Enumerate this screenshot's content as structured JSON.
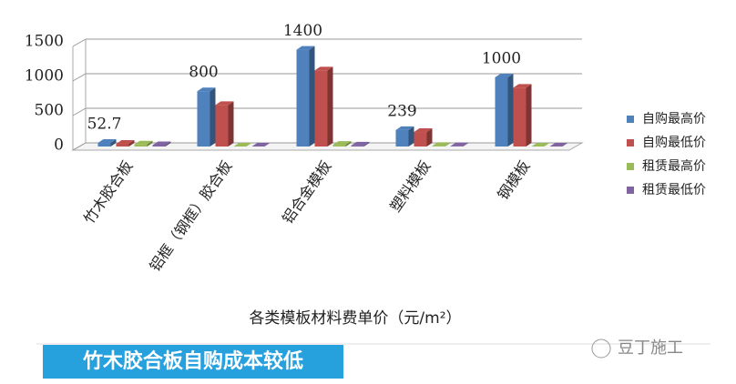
{
  "chart_data": {
    "type": "bar3d",
    "categories": [
      "竹木胶合板",
      "铝框（钢框）胶合板",
      "铝合金模板",
      "塑料模板",
      "钢模板"
    ],
    "series": [
      {
        "name": "自购最高价",
        "color": "#4f81bd",
        "values": [
          52.7,
          800,
          1400,
          239,
          1000
        ]
      },
      {
        "name": "自购最低价",
        "color": "#c0504d",
        "values": [
          40,
          600,
          1100,
          210,
          850
        ]
      },
      {
        "name": "租赁最高价",
        "color": "#9bbb59",
        "values": [
          30,
          0,
          25,
          8,
          0
        ]
      },
      {
        "name": "租赁最低价",
        "color": "#8064a2",
        "values": [
          20,
          0,
          15,
          5,
          0
        ]
      }
    ],
    "ylim": [
      0,
      1500
    ],
    "yticks": [
      0,
      500,
      1000,
      1500
    ],
    "grid": true,
    "x_label": "各类模板材料费单价（元/m²）",
    "legend": "right"
  },
  "banner": "竹木胶合板自购成本较低",
  "watermark": "豆丁施工"
}
